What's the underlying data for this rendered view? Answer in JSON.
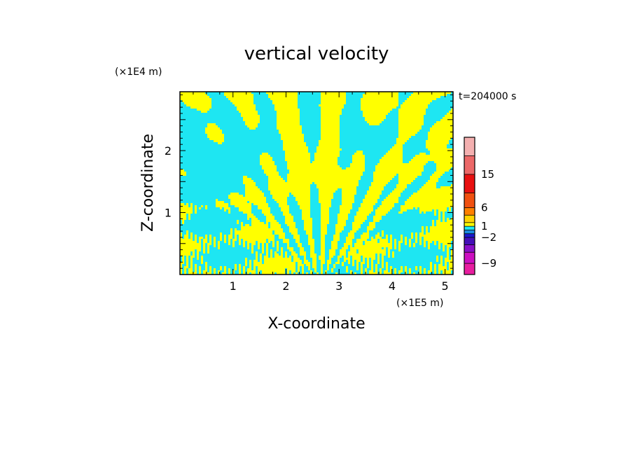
{
  "chart_data": {
    "type": "heatmap",
    "title": "vertical velocity",
    "xlabel": "X-coordinate",
    "ylabel": "Z-coordinate",
    "x_unit": "(×1E5 m)",
    "y_unit": "(×1E4 m)",
    "time_label": "t=204000 s",
    "xlim": [
      0,
      5.15
    ],
    "ylim": [
      0,
      2.95
    ],
    "x_ticks": [
      1,
      2,
      3,
      4,
      5
    ],
    "y_ticks": [
      1,
      2
    ],
    "colorbar": {
      "levels": [
        -12,
        -9,
        -6,
        -4,
        -2,
        -1,
        0,
        1,
        2,
        4,
        6,
        10,
        15,
        20,
        25
      ],
      "labels": [
        "15",
        "6",
        "1",
        "−2",
        "−9"
      ],
      "label_values": [
        15,
        6,
        1,
        -2,
        -9
      ],
      "colors": [
        "#e81ea0",
        "#cc10c0",
        "#8a10c8",
        "#4410b8",
        "#1a18d0",
        "#1a8ce0",
        "#1ee6f2",
        "#ffff00",
        "#ffd400",
        "#ff8000",
        "#f05010",
        "#e81010",
        "#ec6868",
        "#f4b0b0",
        "#fce8e4"
      ]
    },
    "field_colors": {
      "positive": "#ffff00",
      "negative": "#1ee6f2"
    }
  }
}
